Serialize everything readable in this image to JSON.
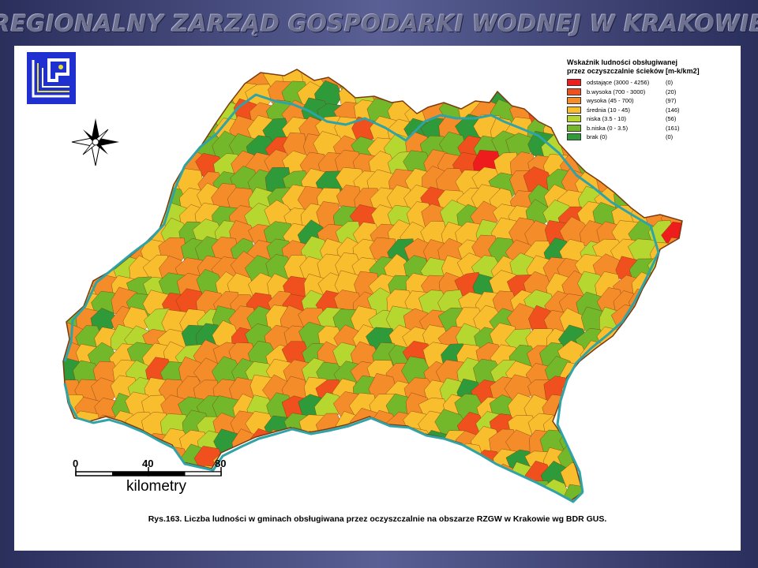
{
  "header": {
    "title": "REGIONALNY ZARZĄD GOSPODARKI WODNEJ W KRAKOWIE"
  },
  "logo": {
    "icon": "rzgw-logo-icon",
    "color": "#1f2fd0"
  },
  "compass": {
    "icon": "compass-rose-icon"
  },
  "legend": {
    "title_line1": "Wskaźnik ludności obsługiwanej",
    "title_line2": "przez oczyszczalnie ścieków [m-k/km2]",
    "items": [
      {
        "label": "odstające (3000 - 4256)",
        "count": "(0)",
        "color": "#ee1c1c"
      },
      {
        "label": "b.wysoka (700 - 3000)",
        "count": "(20)",
        "color": "#f0501e"
      },
      {
        "label": "wysoka (45 - 700)",
        "count": "(97)",
        "color": "#f58c2a"
      },
      {
        "label": "średnia (10 - 45)",
        "count": "(146)",
        "color": "#f8be2e"
      },
      {
        "label": "niska (3.5 - 10)",
        "count": "(56)",
        "color": "#b6d630"
      },
      {
        "label": "b.niska (0 - 3.5)",
        "count": "(161)",
        "color": "#72b82a"
      },
      {
        "label": "brak (0)",
        "count": "(0)",
        "color": "#2e9a3a"
      }
    ]
  },
  "scale_bar": {
    "tick_0": "0",
    "tick_40": "40",
    "tick_80": "80",
    "unit": "kilometry"
  },
  "caption": "Rys.163. Liczba ludności w gminach obsługiwana przez oczyszczalnie na obszarze RZGW w Krakowie wg BDR GUS.",
  "colors": {
    "boundary": "#2fa3a6",
    "region_outline": "#7a3a10"
  }
}
